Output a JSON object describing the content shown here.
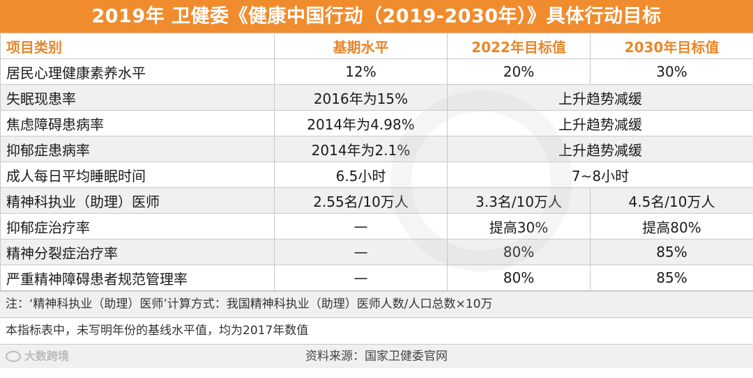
{
  "title": "2019年 卫健委《健康中国行动（2019-2030年）》具体行动目标",
  "header": {
    "col1": "项目类别",
    "col2": "基期水平",
    "col3": "2022年目标值",
    "col4": "2030年目标值"
  },
  "rows": [
    {
      "category": "居民心理健康素养水平",
      "base": "12%",
      "t2022": "20%",
      "t2030": "30%"
    },
    {
      "category": "失眠现患率",
      "base": "2016年为15%",
      "merged": "上升趋势减缓"
    },
    {
      "category": "焦虑障碍患病率",
      "base": "2014年为4.98%",
      "merged": "上升趋势减缓"
    },
    {
      "category": "抑郁症患病率",
      "base": "2014年为2.1%",
      "merged": "上升趋势减缓"
    },
    {
      "category": "成人每日平均睡眠时间",
      "base": "6.5小时",
      "merged": "7~8小时"
    },
    {
      "category": "精神科执业（助理）医师",
      "base": "2.55名/10万人",
      "t2022": "3.3名/10万人",
      "t2030": "4.5名/10万人"
    },
    {
      "category": "抑郁症治疗率",
      "base": "—",
      "t2022": "提高30%",
      "t2030": "提高80%"
    },
    {
      "category": "精神分裂症治疗率",
      "base": "—",
      "t2022": "80%",
      "t2030": "85%"
    },
    {
      "category": "严重精神障碍患者规范管理率",
      "base": "—",
      "t2022": "80%",
      "t2030": "85%"
    }
  ],
  "notes": {
    "note1": "注：‘精神科执业（助理）医师’计算方式：我国精神科执业（助理）医师人数/人口总数×10万",
    "note2": "本指标表中，未写明年份的基线水平值，均为2017年数值"
  },
  "source": "资料来源：国家卫健委官网",
  "watermark": "大数跨境",
  "colors": {
    "accent": "#f08c2e",
    "header_text": "#e8862a",
    "row_alt": "#f0f0f0"
  }
}
